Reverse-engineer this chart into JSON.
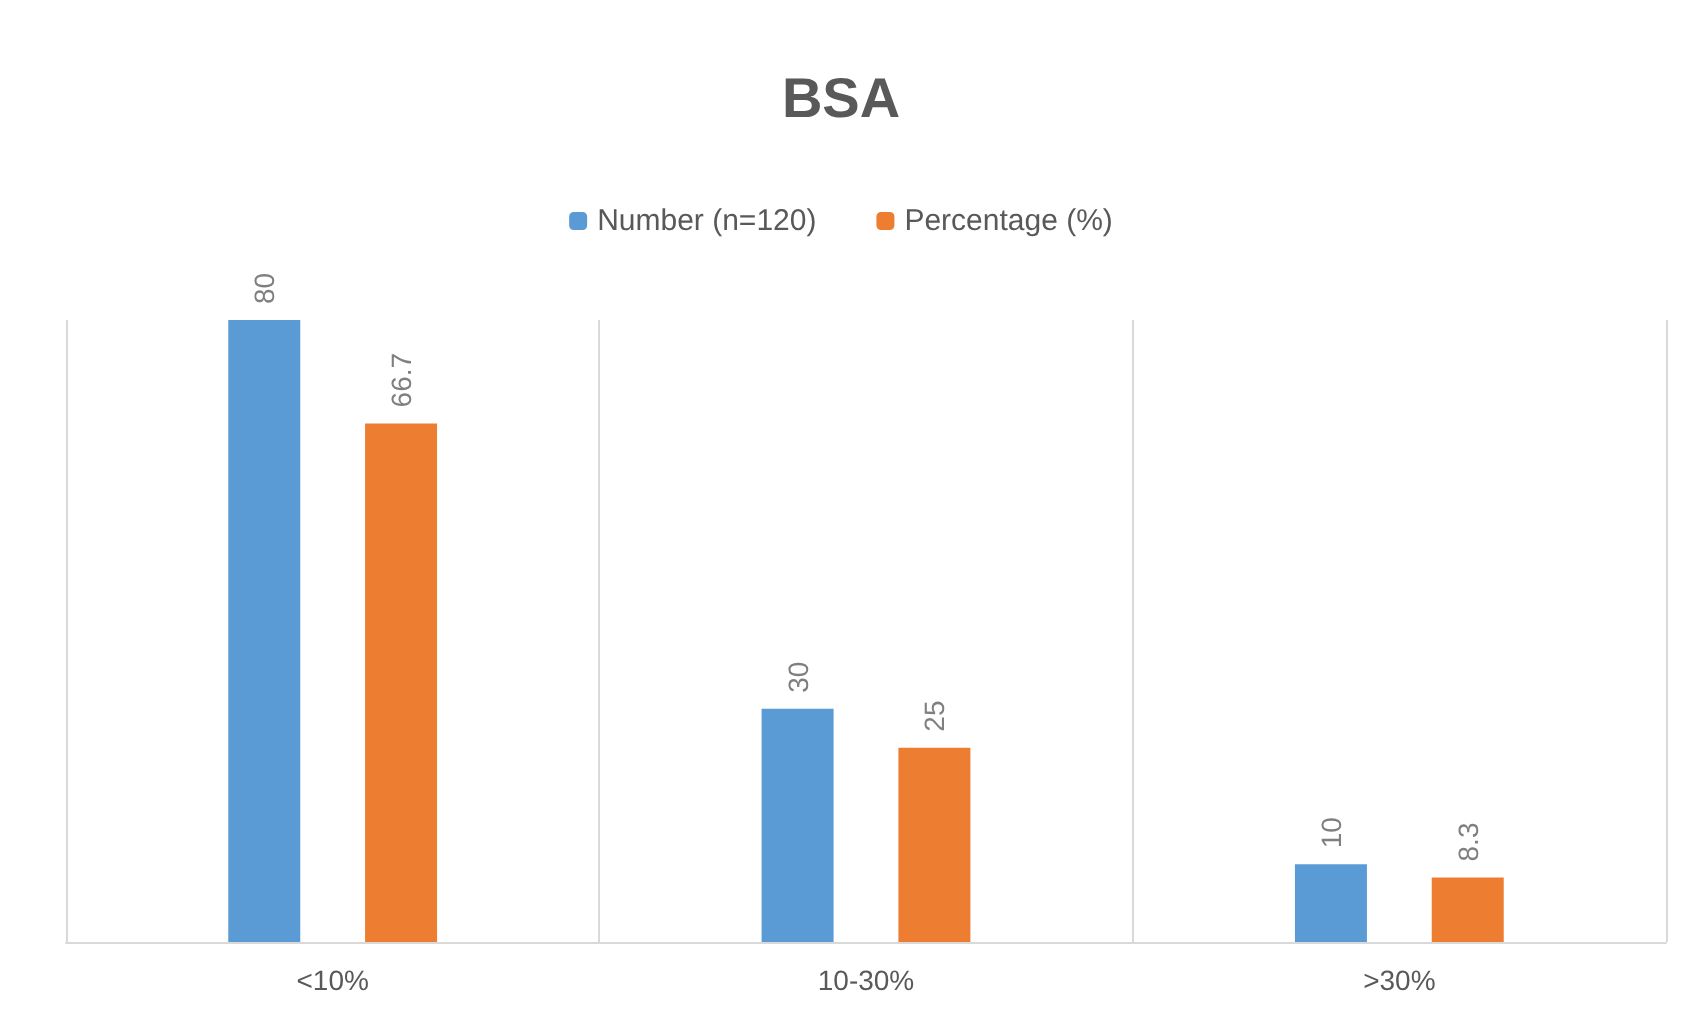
{
  "chart_data": {
    "type": "bar",
    "title": "BSA",
    "categories": [
      "<10%",
      "10-30%",
      ">30%"
    ],
    "series": [
      {
        "name": "Number (n=120)",
        "color": "#5b9bd5",
        "values": [
          80,
          30,
          10
        ]
      },
      {
        "name": "Percentage (%)",
        "color": "#ed7d31",
        "values": [
          66.7,
          25,
          8.3
        ]
      }
    ],
    "data_labels": true,
    "grid": "x",
    "legend": "top",
    "tick_labels": "x"
  }
}
